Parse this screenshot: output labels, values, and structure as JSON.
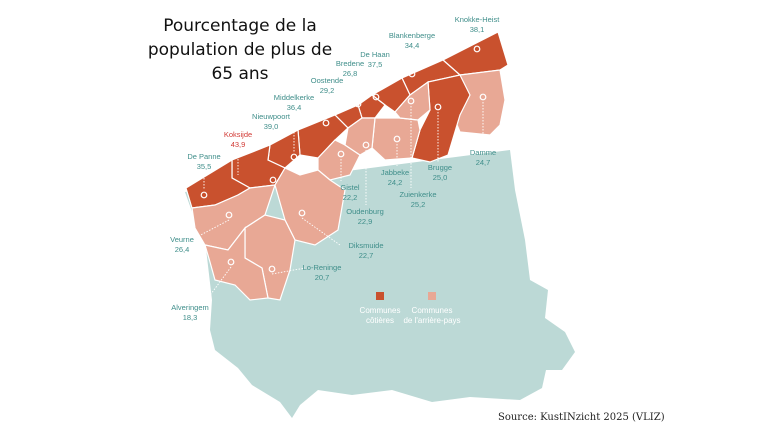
{
  "title_lines": [
    "Pourcentage de la",
    "population de plus de",
    "65 ans"
  ],
  "source": "Source: KustINzicht 2025 (VLIZ)",
  "colors": {
    "coastal": "#c9512e",
    "hinterland": "#e8a895",
    "province": "#bcd9d6",
    "highlight": "#d23a35",
    "label": "#3f8e8a"
  },
  "legend": [
    {
      "label_lines": [
        "Communes",
        "côtières"
      ],
      "category": "coastal"
    },
    {
      "label_lines": [
        "Communes",
        "de l'arrière-pays"
      ],
      "category": "hinterland"
    }
  ],
  "municipalities": [
    {
      "name": "Knokke-Heist",
      "value": "38,1",
      "category": "coastal"
    },
    {
      "name": "Blankenberge",
      "value": "34,4",
      "category": "coastal"
    },
    {
      "name": "De Haan",
      "value": "37,5",
      "category": "coastal"
    },
    {
      "name": "Bredene",
      "value": "26,8",
      "category": "coastal"
    },
    {
      "name": "Oostende",
      "value": "29,2",
      "category": "coastal"
    },
    {
      "name": "Middelkerke",
      "value": "36,4",
      "category": "coastal"
    },
    {
      "name": "Nieuwpoort",
      "value": "39,0",
      "category": "coastal"
    },
    {
      "name": "Koksijde",
      "value": "43,9",
      "category": "coastal",
      "highlight": true
    },
    {
      "name": "De Panne",
      "value": "35,5",
      "category": "coastal"
    },
    {
      "name": "Damme",
      "value": "24,7",
      "category": "hinterland"
    },
    {
      "name": "Brugge",
      "value": "25,0",
      "category": "coastal"
    },
    {
      "name": "Jabbeke",
      "value": "24,2",
      "category": "hinterland"
    },
    {
      "name": "Zuienkerke",
      "value": "25,2",
      "category": "hinterland"
    },
    {
      "name": "Gistel",
      "value": "22,2",
      "category": "hinterland"
    },
    {
      "name": "Oudenburg",
      "value": "22,9",
      "category": "hinterland"
    },
    {
      "name": "Veurne",
      "value": "26,4",
      "category": "hinterland"
    },
    {
      "name": "Diksmuide",
      "value": "22,7",
      "category": "hinterland"
    },
    {
      "name": "Lo-Reninge",
      "value": "20,7",
      "category": "hinterland"
    },
    {
      "name": "Alveringem",
      "value": "18,3",
      "category": "hinterland"
    }
  ]
}
